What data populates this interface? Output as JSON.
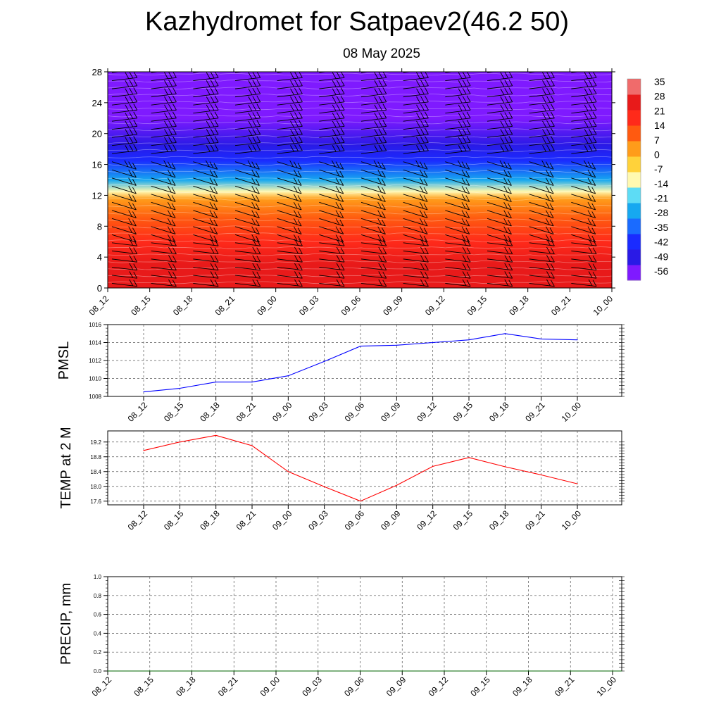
{
  "title": "Kazhydromet for Satpaev2(46.2 50)",
  "subtitle": "08 May 2025",
  "time_labels": [
    "08_12",
    "08_15",
    "08_18",
    "08_21",
    "09_00",
    "09_03",
    "09_06",
    "09_09",
    "09_12",
    "09_15",
    "09_18",
    "09_21",
    "10_00"
  ],
  "chart_data": [
    {
      "type": "heatmap",
      "name": "cross-section",
      "x": [
        "08_12",
        "08_15",
        "08_18",
        "08_21",
        "09_00",
        "09_03",
        "09_06",
        "09_09",
        "09_12",
        "09_15",
        "09_18",
        "09_21",
        "10_00"
      ],
      "y_ticks": [
        0,
        4,
        8,
        12,
        16,
        20,
        24,
        28
      ],
      "ylim": [
        0,
        28
      ],
      "colorbar": {
        "labels": [
          "35",
          "28",
          "21",
          "14",
          "7",
          "0",
          "-7",
          "-14",
          "-21",
          "-28",
          "-35",
          "-42",
          "-49",
          "-56"
        ],
        "range": [
          -63,
          35
        ],
        "colors": [
          "#7f1aff",
          "#2a1ae6",
          "#1a2bff",
          "#1a6bff",
          "#16a8f0",
          "#5ddcf5",
          "#fff9b0",
          "#ffd23a",
          "#ff9c1a",
          "#ff5a10",
          "#ff2a1a",
          "#e81a1a",
          "#f06b6b"
        ]
      },
      "profile": [
        {
          "h": 0,
          "t": 26
        },
        {
          "h": 3,
          "t": 24
        },
        {
          "h": 6,
          "t": 18
        },
        {
          "h": 9,
          "t": 8
        },
        {
          "h": 11.5,
          "t": 0
        },
        {
          "h": 12.5,
          "t": -12
        },
        {
          "h": 14,
          "t": -30
        },
        {
          "h": 16.5,
          "t": -45
        },
        {
          "h": 18.5,
          "t": -55
        },
        {
          "h": 22,
          "t": -58
        },
        {
          "h": 25,
          "t": -57
        },
        {
          "h": 28,
          "t": -58
        }
      ],
      "grid": false
    },
    {
      "type": "line",
      "ylabel": "PMSL",
      "x": [
        "08_12",
        "08_15",
        "08_18",
        "08_21",
        "09_00",
        "09_03",
        "09_06",
        "09_09",
        "09_12",
        "09_15",
        "09_18",
        "09_21",
        "10_00"
      ],
      "values": [
        1008.5,
        1008.9,
        1009.6,
        1009.6,
        1010.3,
        1011.9,
        1013.6,
        1013.7,
        1014.0,
        1014.3,
        1015.0,
        1014.4,
        1014.3
      ],
      "y_ticks": [
        "1008",
        "1010",
        "1012",
        "1014",
        "1016"
      ],
      "ylim": [
        1008,
        1016
      ],
      "color": "#0000ff",
      "grid": true
    },
    {
      "type": "line",
      "ylabel": "TEMP at 2 M",
      "x": [
        "08_12",
        "08_15",
        "08_18",
        "08_21",
        "09_00",
        "09_03",
        "09_06",
        "09_09",
        "09_12",
        "09_15",
        "09_18",
        "09_21",
        "10_00"
      ],
      "values": [
        18.97,
        19.2,
        19.38,
        19.1,
        18.4,
        17.99,
        17.6,
        18.03,
        18.54,
        18.78,
        18.53,
        18.31,
        18.07
      ],
      "y_ticks": [
        "17.6",
        "18.0",
        "18.4",
        "18.8",
        "19.2"
      ],
      "ylim": [
        17.5,
        19.5
      ],
      "color": "#ff0000",
      "grid": true
    },
    {
      "type": "line",
      "ylabel": "PRECIP, mm",
      "x": [
        "08_12",
        "08_15",
        "08_18",
        "08_21",
        "09_00",
        "09_03",
        "09_06",
        "09_09",
        "09_12",
        "09_15",
        "09_18",
        "09_21",
        "10_00"
      ],
      "values": [
        0,
        0,
        0,
        0,
        0,
        0,
        0,
        0,
        0,
        0,
        0,
        0,
        0
      ],
      "y_ticks": [
        "0.0",
        "0.2",
        "0.4",
        "0.6",
        "0.8",
        "1.0"
      ],
      "ylim": [
        0,
        1
      ],
      "color": "#006400",
      "grid": true
    }
  ]
}
